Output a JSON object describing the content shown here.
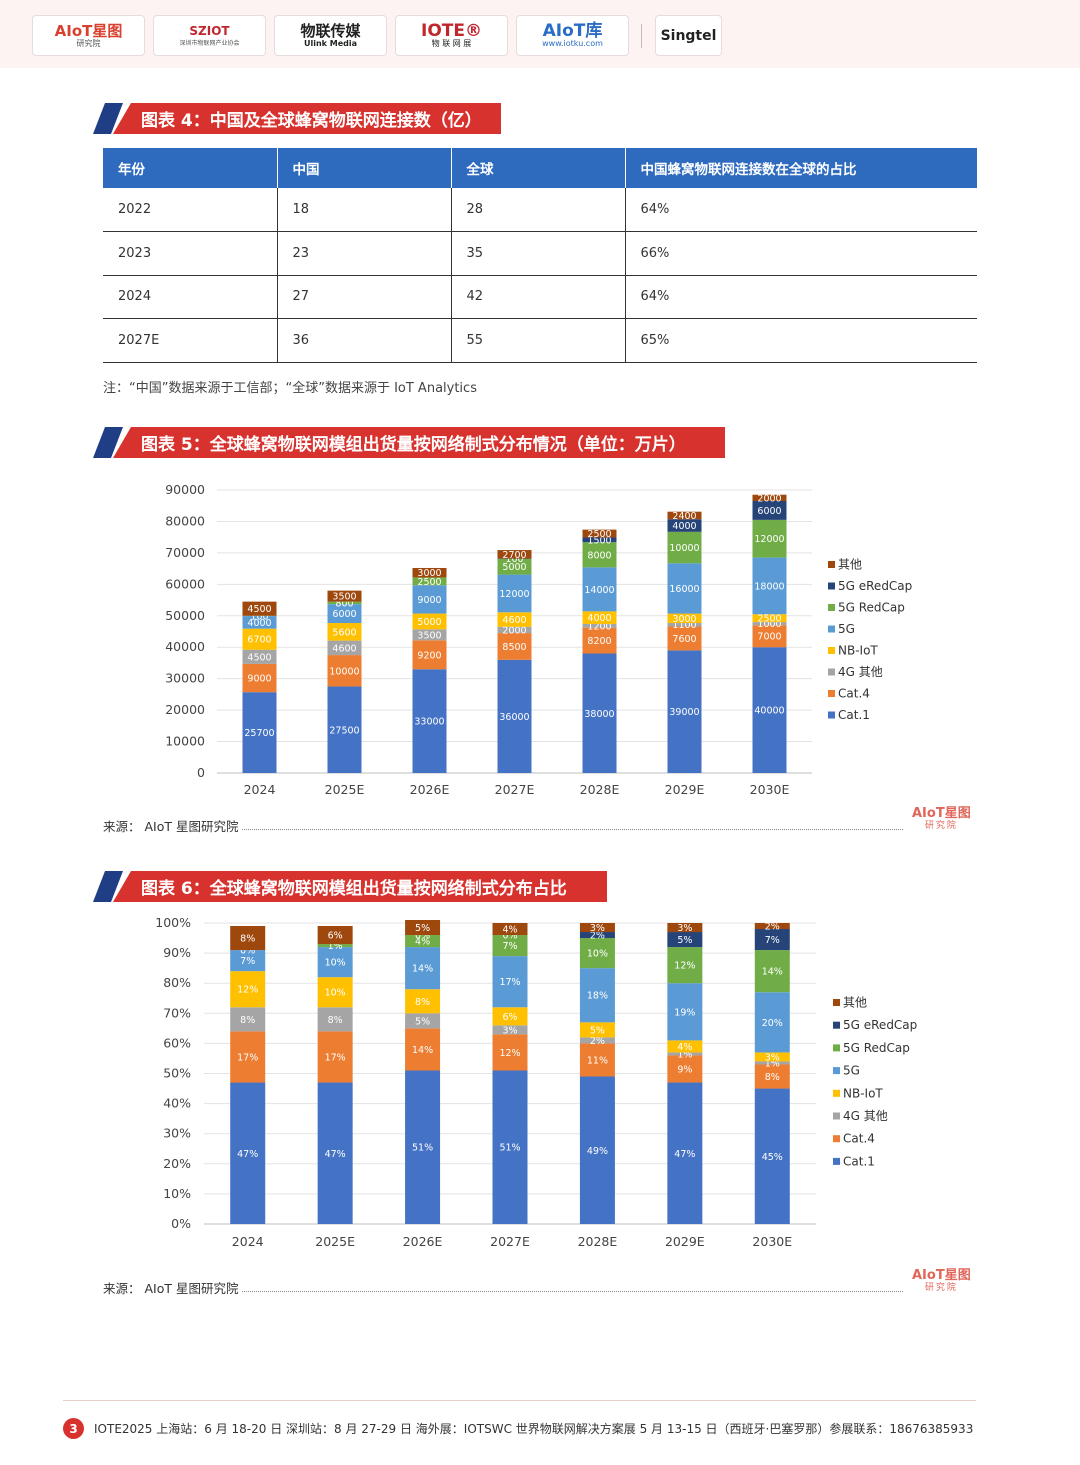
{
  "header": {
    "logos": [
      {
        "main": "AIoT星图",
        "sub": "研究院"
      },
      {
        "main": "SZIOT",
        "sub": "深圳市物联网产业协会"
      },
      {
        "main": "物联传媒",
        "sub": "Ulink Media"
      },
      {
        "main": "IOTE®",
        "sub": "物 联 网 展"
      },
      {
        "main": "AIoT库",
        "sub": "www.iotku.com"
      },
      {
        "main": "Singtel",
        "sub": ""
      }
    ]
  },
  "figure4": {
    "title": "图表 4：中国及全球蜂窝物联网连接数（亿）",
    "columns": [
      "年份",
      "中国",
      "全球",
      "中国蜂窝物联网连接数在全球的占比"
    ],
    "rows": [
      [
        "2022",
        "18",
        "28",
        "64%"
      ],
      [
        "2023",
        "23",
        "35",
        "66%"
      ],
      [
        "2024",
        "27",
        "42",
        "64%"
      ],
      [
        "2027E",
        "36",
        "55",
        "65%"
      ]
    ],
    "note": "注：“中国”数据来源于工信部；“全球”数据来源于 IoT Analytics"
  },
  "figure5": {
    "title": "图表 5：全球蜂窝物联网模组出货量按网络制式分布情况（单位：万片）",
    "source": "来源： AIoT 星图研究院"
  },
  "figure6": {
    "title": "图表 6：全球蜂窝物联网模组出货量按网络制式分布占比",
    "source": "来源： AIoT 星图研究院"
  },
  "watermark": {
    "main": "AIoT星图",
    "sub": "研究院"
  },
  "footer": {
    "page": "3",
    "text": "IOTE2025 上海站：6 月 18-20 日  深圳站：8 月 27-29 日  海外展：IOTSWC 世界物联网解决方案展  5 月 13-15 日（西班牙·巴塞罗那）参展联系：18676385933"
  },
  "colors": {
    "Cat.1": "#4472c4",
    "Cat.4": "#ed7d31",
    "4G 其他": "#a5a5a5",
    "NB-IoT": "#ffc000",
    "5G": "#5b9bd5",
    "5G RedCap": "#70ad47",
    "5G eRedCap": "#264478",
    "其他": "#9e480e"
  },
  "chart_data": [
    {
      "type": "bar",
      "stacked": true,
      "categories": [
        "2024",
        "2025E",
        "2026E",
        "2027E",
        "2028E",
        "2029E",
        "2030E"
      ],
      "ylim": [
        0,
        90000
      ],
      "yticks": [
        "0",
        "10000",
        "20000",
        "30000",
        "40000",
        "50000",
        "60000",
        "70000",
        "80000",
        "90000"
      ],
      "legend_position": "right",
      "series": [
        {
          "name": "Cat.1",
          "values": [
            25700,
            27500,
            33000,
            36000,
            38000,
            39000,
            40000
          ],
          "labels": [
            "25700",
            "27500",
            "33000",
            "36000",
            "38000",
            "39000",
            "40000"
          ]
        },
        {
          "name": "Cat.4",
          "values": [
            9000,
            10000,
            9200,
            8500,
            8200,
            7600,
            7000
          ],
          "labels": [
            "9000",
            "10000",
            "9200",
            "8500",
            "8200",
            "7600",
            "7000"
          ]
        },
        {
          "name": "4G 其他",
          "values": [
            4500,
            4600,
            3500,
            2000,
            1200,
            1100,
            1000
          ],
          "labels": [
            "4500",
            "4600",
            "3500",
            "2000",
            "1200",
            "1100",
            "1000"
          ]
        },
        {
          "name": "NB-IoT",
          "values": [
            6700,
            5600,
            5000,
            4600,
            4000,
            3000,
            2500
          ],
          "labels": [
            "6700",
            "5600",
            "5000",
            "4600",
            "4000",
            "3000",
            "2500"
          ]
        },
        {
          "name": "5G",
          "values": [
            4000,
            6000,
            9000,
            12000,
            14000,
            16000,
            18000
          ],
          "labels": [
            "4000",
            "6000",
            "9000",
            "12000",
            "14000",
            "16000",
            "18000"
          ]
        },
        {
          "name": "5G RedCap",
          "values": [
            100,
            800,
            2500,
            5000,
            8000,
            10000,
            12000
          ],
          "labels": [
            "100",
            "800",
            "2500",
            "5000",
            "8000",
            "10000",
            "12000"
          ]
        },
        {
          "name": "5G eRedCap",
          "values": [
            0,
            0,
            0,
            100,
            1500,
            4000,
            6000
          ],
          "labels": [
            "",
            "",
            "",
            "100",
            "1500",
            "4000",
            "6000"
          ]
        },
        {
          "name": "其他",
          "values": [
            4500,
            3500,
            3000,
            2700,
            2500,
            2400,
            2000
          ],
          "labels": [
            "4500",
            "3500",
            "3000",
            "2700",
            "2500",
            "2400",
            "2000"
          ]
        }
      ]
    },
    {
      "type": "bar",
      "stacked": true,
      "percent": true,
      "categories": [
        "2024",
        "2025E",
        "2026E",
        "2027E",
        "2028E",
        "2029E",
        "2030E"
      ],
      "ylim": [
        0,
        100
      ],
      "yticks": [
        "0%",
        "10%",
        "20%",
        "30%",
        "40%",
        "50%",
        "60%",
        "70%",
        "80%",
        "90%",
        "100%"
      ],
      "legend_position": "right",
      "series": [
        {
          "name": "Cat.1",
          "values": [
            47,
            47,
            51,
            51,
            49,
            47,
            45
          ],
          "labels": [
            "47%",
            "47%",
            "51%",
            "51%",
            "49%",
            "47%",
            "45%"
          ]
        },
        {
          "name": "Cat.4",
          "values": [
            17,
            17,
            14,
            12,
            11,
            9,
            8
          ],
          "labels": [
            "17%",
            "17%",
            "14%",
            "12%",
            "11%",
            "9%",
            "8%"
          ]
        },
        {
          "name": "4G 其他",
          "values": [
            8,
            8,
            5,
            3,
            2,
            1,
            1
          ],
          "labels": [
            "8%",
            "8%",
            "5%",
            "3%",
            "2%",
            "1%",
            "1%"
          ]
        },
        {
          "name": "NB-IoT",
          "values": [
            12,
            10,
            8,
            6,
            5,
            4,
            3
          ],
          "labels": [
            "12%",
            "10%",
            "8%",
            "6%",
            "5%",
            "4%",
            "3%"
          ]
        },
        {
          "name": "5G",
          "values": [
            7,
            10,
            14,
            17,
            18,
            19,
            20
          ],
          "labels": [
            "7%",
            "10%",
            "14%",
            "17%",
            "18%",
            "19%",
            "20%"
          ]
        },
        {
          "name": "5G RedCap",
          "values": [
            0,
            1,
            4,
            7,
            10,
            12,
            14
          ],
          "labels": [
            "0%",
            "1%",
            "4%",
            "7%",
            "10%",
            "12%",
            "14%"
          ]
        },
        {
          "name": "5G eRedCap",
          "values": [
            0,
            0,
            0,
            0,
            2,
            5,
            7
          ],
          "labels": [
            "",
            "",
            "0%",
            "0%",
            "2%",
            "5%",
            "7%"
          ]
        },
        {
          "name": "其他",
          "values": [
            8,
            6,
            5,
            4,
            3,
            3,
            2
          ],
          "labels": [
            "8%",
            "6%",
            "5%",
            "4%",
            "3%",
            "3%",
            "2%"
          ]
        }
      ]
    }
  ]
}
